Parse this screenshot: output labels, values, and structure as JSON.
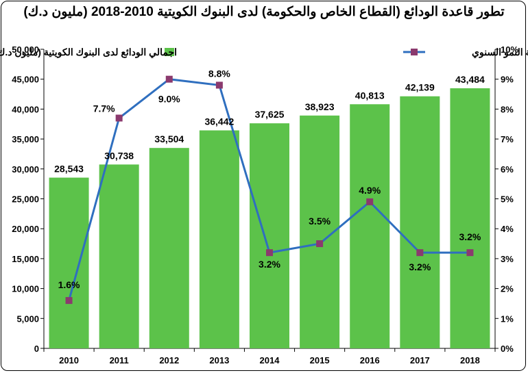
{
  "title": "تطور قاعدة الودائع (القطاع الخاص والحكومة) لدى البنوك الكويتية 2010-2018 (مليون د.ك)",
  "chart_data": {
    "type": "bar",
    "categories": [
      "2010",
      "2011",
      "2012",
      "2013",
      "2014",
      "2015",
      "2016",
      "2017",
      "2018"
    ],
    "series": [
      {
        "name": "اجمالي الودائع لدى البنوك الكويتية (مليون د.ك.)",
        "type": "bar",
        "axis": "left",
        "color": "#5cc24a",
        "values": [
          28543,
          30738,
          33504,
          36442,
          37625,
          38923,
          40813,
          42139,
          43484
        ],
        "labels": [
          "28,543",
          "30,738",
          "33,504",
          "36,442",
          "37,625",
          "38,923",
          "40,813",
          "42,139",
          "43,484"
        ]
      },
      {
        "name": "نسبة النمو السنوي",
        "type": "line",
        "axis": "right",
        "color": "#2f6fbf",
        "marker_color": "#8b3a6e",
        "values": [
          1.6,
          7.7,
          9.0,
          8.8,
          3.2,
          3.5,
          4.9,
          3.2,
          3.2
        ],
        "labels": [
          "1.6%",
          "7.7%",
          "9.0%",
          "8.8%",
          "3.2%",
          "3.5%",
          "4.9%",
          "3.2%",
          "3.2%"
        ]
      }
    ],
    "y_left": {
      "range": [
        0,
        50000
      ],
      "ticks": [
        0,
        5000,
        10000,
        15000,
        20000,
        25000,
        30000,
        35000,
        40000,
        45000,
        50000
      ],
      "tick_labels": [
        "0",
        "5,000",
        "10,000",
        "15,000",
        "20,000",
        "25,000",
        "30,000",
        "35,000",
        "40,000",
        "45,000",
        "50,000"
      ]
    },
    "y_right": {
      "range": [
        0,
        10
      ],
      "ticks": [
        0,
        1,
        2,
        3,
        4,
        5,
        6,
        7,
        8,
        9,
        10
      ],
      "tick_labels": [
        "0%",
        "1%",
        "2%",
        "3%",
        "4%",
        "5%",
        "6%",
        "7%",
        "8%",
        "9%",
        "10%"
      ]
    },
    "grid": false,
    "legend_position": "top"
  }
}
